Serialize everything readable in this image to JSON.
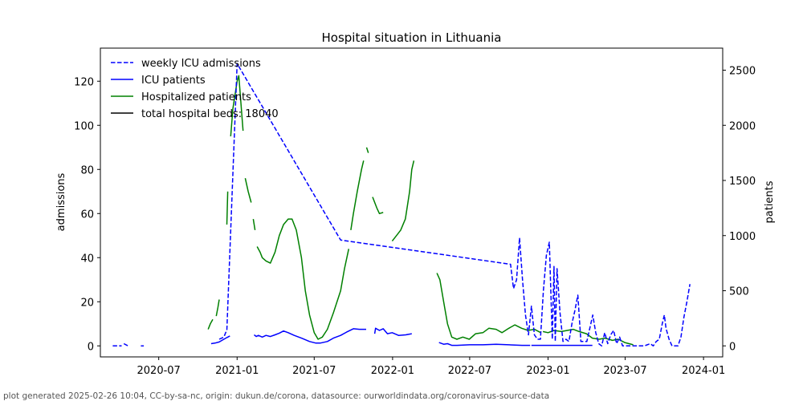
{
  "chart_data": {
    "type": "line",
    "title": "Hospital situation in Lithuania",
    "x_axis": {
      "type": "date",
      "range": [
        "2020-02-15",
        "2024-02-15"
      ],
      "ticks": [
        "2020-07",
        "2021-01",
        "2021-07",
        "2022-01",
        "2022-07",
        "2023-01",
        "2023-07",
        "2024-01"
      ]
    },
    "left_axis": {
      "label": "admissions",
      "range": [
        -5,
        135
      ],
      "ticks": [
        0,
        20,
        40,
        60,
        80,
        100,
        120
      ]
    },
    "right_axis": {
      "label": "patients",
      "range": [
        -100,
        2700
      ],
      "ticks": [
        0,
        500,
        1000,
        1500,
        2000,
        2500
      ]
    },
    "legend": {
      "position": "top-left",
      "entries": [
        {
          "label": "weekly ICU admissions",
          "color": "#0000ff",
          "style": "dashed"
        },
        {
          "label": "ICU patients",
          "color": "#0000ff",
          "style": "solid"
        },
        {
          "label": "Hospitalized patients",
          "color": "#008000",
          "style": "solid"
        },
        {
          "label": "total hospital beds: 18040",
          "color": "#000000",
          "style": "solid"
        }
      ]
    },
    "series": [
      {
        "name": "weekly ICU admissions",
        "axis": "left",
        "color": "#0000ff",
        "style": "dashed",
        "segments": [
          [
            [
              "2020-03-15",
              0
            ],
            [
              "2020-04-05",
              0
            ]
          ],
          [
            [
              "2020-04-10",
              1
            ],
            [
              "2020-04-20",
              0
            ]
          ],
          [
            [
              "2020-05-20",
              0
            ],
            [
              "2020-05-27",
              0
            ]
          ],
          [
            [
              "2020-11-20",
              3
            ],
            [
              "2020-12-01",
              4
            ],
            [
              "2020-12-05",
              6
            ],
            [
              "2020-12-08",
              7
            ],
            [
              "2021-01-01",
              128
            ],
            [
              "2021-09-01",
              48
            ],
            [
              "2022-10-05",
              37
            ],
            [
              "2022-10-12",
              26
            ],
            [
              "2022-10-19",
              30
            ],
            [
              "2022-10-26",
              49
            ],
            [
              "2022-11-02",
              30
            ],
            [
              "2022-11-09",
              14
            ],
            [
              "2022-11-16",
              5
            ],
            [
              "2022-11-23",
              18
            ],
            [
              "2022-11-30",
              5
            ],
            [
              "2022-12-07",
              3
            ],
            [
              "2022-12-14",
              3
            ],
            [
              "2022-12-21",
              25
            ],
            [
              "2022-12-28",
              41
            ],
            [
              "2023-01-04",
              47
            ],
            [
              "2023-01-11",
              3
            ],
            [
              "2023-01-15",
              36
            ],
            [
              "2023-01-18",
              2
            ],
            [
              "2023-01-22",
              35
            ],
            [
              "2023-01-29",
              15
            ],
            [
              "2023-02-05",
              2
            ],
            [
              "2023-02-12",
              3
            ],
            [
              "2023-02-19",
              2
            ],
            [
              "2023-02-26",
              10
            ],
            [
              "2023-03-05",
              16
            ],
            [
              "2023-03-12",
              23
            ],
            [
              "2023-03-19",
              2
            ],
            [
              "2023-03-26",
              2
            ],
            [
              "2023-04-02",
              2
            ],
            [
              "2023-04-09",
              8
            ],
            [
              "2023-04-16",
              14
            ],
            [
              "2023-04-23",
              6
            ],
            [
              "2023-04-30",
              1
            ],
            [
              "2023-05-07",
              0
            ],
            [
              "2023-05-14",
              6
            ],
            [
              "2023-05-21",
              1
            ],
            [
              "2023-05-28",
              5
            ],
            [
              "2023-06-04",
              7
            ],
            [
              "2023-06-11",
              1
            ],
            [
              "2023-06-18",
              4
            ],
            [
              "2023-06-25",
              0
            ],
            [
              "2023-07-02",
              0
            ],
            [
              "2023-07-16",
              0
            ],
            [
              "2023-08-01",
              0
            ],
            [
              "2023-08-15",
              0
            ],
            [
              "2023-08-29",
              1
            ],
            [
              "2023-09-05",
              0
            ],
            [
              "2023-09-12",
              2
            ],
            [
              "2023-09-19",
              3
            ],
            [
              "2023-09-26",
              10
            ],
            [
              "2023-10-01",
              14
            ],
            [
              "2023-10-05",
              8
            ],
            [
              "2023-10-12",
              3
            ],
            [
              "2023-10-19",
              0
            ],
            [
              "2023-10-26",
              0
            ],
            [
              "2023-11-02",
              0
            ],
            [
              "2023-11-09",
              4
            ],
            [
              "2023-11-16",
              13
            ],
            [
              "2023-11-23",
              20
            ],
            [
              "2023-11-30",
              28
            ]
          ]
        ]
      },
      {
        "name": "ICU patients",
        "axis": "right",
        "color": "#0000ff",
        "style": "solid",
        "segments": [
          [
            [
              "2020-11-01",
              20
            ],
            [
              "2020-11-10",
              25
            ],
            [
              "2020-11-20",
              35
            ],
            [
              "2020-12-01",
              60
            ],
            [
              "2020-12-08",
              75
            ],
            [
              "2020-12-15",
              90
            ]
          ],
          [
            [
              "2021-02-10",
              100
            ],
            [
              "2021-02-15",
              85
            ],
            [
              "2021-02-20",
              95
            ],
            [
              "2021-03-01",
              80
            ],
            [
              "2021-03-10",
              95
            ],
            [
              "2021-03-20",
              85
            ],
            [
              "2021-03-31",
              100
            ],
            [
              "2021-04-10",
              115
            ],
            [
              "2021-04-20",
              135
            ],
            [
              "2021-05-01",
              120
            ],
            [
              "2021-05-15",
              95
            ],
            [
              "2021-06-01",
              70
            ],
            [
              "2021-06-20",
              40
            ],
            [
              "2021-07-05",
              25
            ],
            [
              "2021-07-15",
              25
            ],
            [
              "2021-08-01",
              40
            ],
            [
              "2021-08-15",
              70
            ],
            [
              "2021-09-01",
              95
            ],
            [
              "2021-09-15",
              125
            ],
            [
              "2021-10-01",
              155
            ],
            [
              "2021-10-15",
              150
            ],
            [
              "2021-10-31",
              150
            ]
          ],
          [
            [
              "2021-11-20",
              110
            ],
            [
              "2021-11-22",
              160
            ],
            [
              "2021-12-01",
              140
            ],
            [
              "2021-12-10",
              155
            ],
            [
              "2021-12-20",
              110
            ],
            [
              "2021-12-31",
              120
            ],
            [
              "2022-01-15",
              95
            ],
            [
              "2022-02-01",
              100
            ],
            [
              "2022-02-15",
              110
            ]
          ],
          [
            [
              "2022-04-20",
              30
            ],
            [
              "2022-05-01",
              15
            ],
            [
              "2022-05-10",
              20
            ],
            [
              "2022-05-20",
              5
            ],
            [
              "2022-06-01",
              5
            ],
            [
              "2022-07-01",
              10
            ],
            [
              "2022-08-01",
              10
            ],
            [
              "2022-09-01",
              15
            ],
            [
              "2022-10-01",
              10
            ],
            [
              "2022-11-01",
              5
            ],
            [
              "2022-11-20",
              5
            ]
          ],
          [
            [
              "2022-11-23",
              5
            ],
            [
              "2022-12-20",
              5
            ],
            [
              "2023-01-20",
              5
            ],
            [
              "2023-03-01",
              5
            ],
            [
              "2023-04-15",
              5
            ]
          ]
        ]
      },
      {
        "name": "Hospitalized patients",
        "axis": "right",
        "color": "#008000",
        "style": "solid",
        "segments": [
          [
            [
              "2020-10-25",
              150
            ],
            [
              "2020-10-30",
              200
            ],
            [
              "2020-11-05",
              240
            ]
          ],
          [
            [
              "2020-11-13",
              270
            ],
            [
              "2020-11-17",
              350
            ],
            [
              "2020-11-20",
              420
            ]
          ],
          [
            [
              "2020-12-08",
              1100
            ],
            [
              "2020-12-10",
              1400
            ]
          ],
          [
            [
              "2020-12-17",
              1900
            ],
            [
              "2020-12-22",
              2150
            ],
            [
              "2020-12-28",
              2300
            ],
            [
              "2021-01-01",
              2400
            ],
            [
              "2021-01-05",
              2450
            ],
            [
              "2021-01-08",
              2300
            ],
            [
              "2021-01-12",
              2100
            ],
            [
              "2021-01-15",
              1950
            ]
          ],
          [
            [
              "2021-01-20",
              1520
            ],
            [
              "2021-01-27",
              1400
            ],
            [
              "2021-02-03",
              1300
            ]
          ],
          [
            [
              "2021-02-08",
              1150
            ],
            [
              "2021-02-12",
              1050
            ]
          ],
          [
            [
              "2021-02-17",
              900
            ],
            [
              "2021-02-24",
              850
            ],
            [
              "2021-03-01",
              800
            ],
            [
              "2021-03-10",
              770
            ],
            [
              "2021-03-20",
              750
            ],
            [
              "2021-03-31",
              850
            ],
            [
              "2021-04-10",
              1000
            ],
            [
              "2021-04-20",
              1100
            ],
            [
              "2021-05-01",
              1150
            ],
            [
              "2021-05-10",
              1150
            ],
            [
              "2021-05-20",
              1050
            ],
            [
              "2021-06-01",
              800
            ],
            [
              "2021-06-10",
              500
            ],
            [
              "2021-06-20",
              280
            ],
            [
              "2021-07-01",
              120
            ],
            [
              "2021-07-10",
              60
            ],
            [
              "2021-07-20",
              80
            ],
            [
              "2021-08-01",
              150
            ],
            [
              "2021-08-15",
              300
            ],
            [
              "2021-09-01",
              500
            ],
            [
              "2021-09-10",
              700
            ],
            [
              "2021-09-20",
              880
            ]
          ],
          [
            [
              "2021-09-25",
              1050
            ],
            [
              "2021-10-01",
              1200
            ],
            [
              "2021-10-10",
              1400
            ],
            [
              "2021-10-20",
              1600
            ],
            [
              "2021-10-25",
              1680
            ]
          ],
          [
            [
              "2021-11-01",
              1800
            ],
            [
              "2021-11-05",
              1750
            ]
          ],
          [
            [
              "2021-11-15",
              1350
            ],
            [
              "2021-11-25",
              1250
            ],
            [
              "2021-12-01",
              1200
            ],
            [
              "2021-12-10",
              1210
            ]
          ],
          [
            [
              "2021-12-31",
              950
            ],
            [
              "2022-01-10",
              1000
            ],
            [
              "2022-01-20",
              1050
            ],
            [
              "2022-01-31",
              1150
            ],
            [
              "2022-02-10",
              1400
            ],
            [
              "2022-02-15",
              1600
            ],
            [
              "2022-02-20",
              1680
            ]
          ],
          [
            [
              "2022-04-15",
              660
            ],
            [
              "2022-04-22",
              600
            ],
            [
              "2022-05-01",
              400
            ],
            [
              "2022-05-10",
              200
            ],
            [
              "2022-05-20",
              80
            ],
            [
              "2022-06-01",
              60
            ],
            [
              "2022-06-15",
              80
            ],
            [
              "2022-06-30",
              60
            ],
            [
              "2022-07-15",
              110
            ],
            [
              "2022-08-01",
              120
            ],
            [
              "2022-08-15",
              160
            ],
            [
              "2022-09-01",
              150
            ],
            [
              "2022-09-15",
              120
            ],
            [
              "2022-10-01",
              160
            ],
            [
              "2022-10-15",
              190
            ],
            [
              "2022-10-31",
              160
            ],
            [
              "2022-11-15",
              140
            ],
            [
              "2022-11-30",
              150
            ],
            [
              "2022-12-15",
              120
            ]
          ],
          [
            [
              "2022-12-20",
              130
            ],
            [
              "2023-01-01",
              120
            ],
            [
              "2023-01-15",
              140
            ],
            [
              "2023-02-01",
              130
            ],
            [
              "2023-02-15",
              140
            ],
            [
              "2023-03-01",
              150
            ],
            [
              "2023-03-15",
              130
            ],
            [
              "2023-04-01",
              110
            ],
            [
              "2023-04-15",
              70
            ],
            [
              "2023-05-01",
              60
            ],
            [
              "2023-05-15",
              70
            ],
            [
              "2023-06-01",
              50
            ],
            [
              "2023-06-15",
              60
            ],
            [
              "2023-06-30",
              30
            ],
            [
              "2023-07-10",
              20
            ],
            [
              "2023-07-20",
              10
            ]
          ]
        ]
      }
    ]
  },
  "footer": {
    "text": "plot generated 2025-02-26 10:04, CC-by-sa-nc, origin: dukun.de/corona, datasource: ourworldindata.org/coronavirus-source-data"
  }
}
